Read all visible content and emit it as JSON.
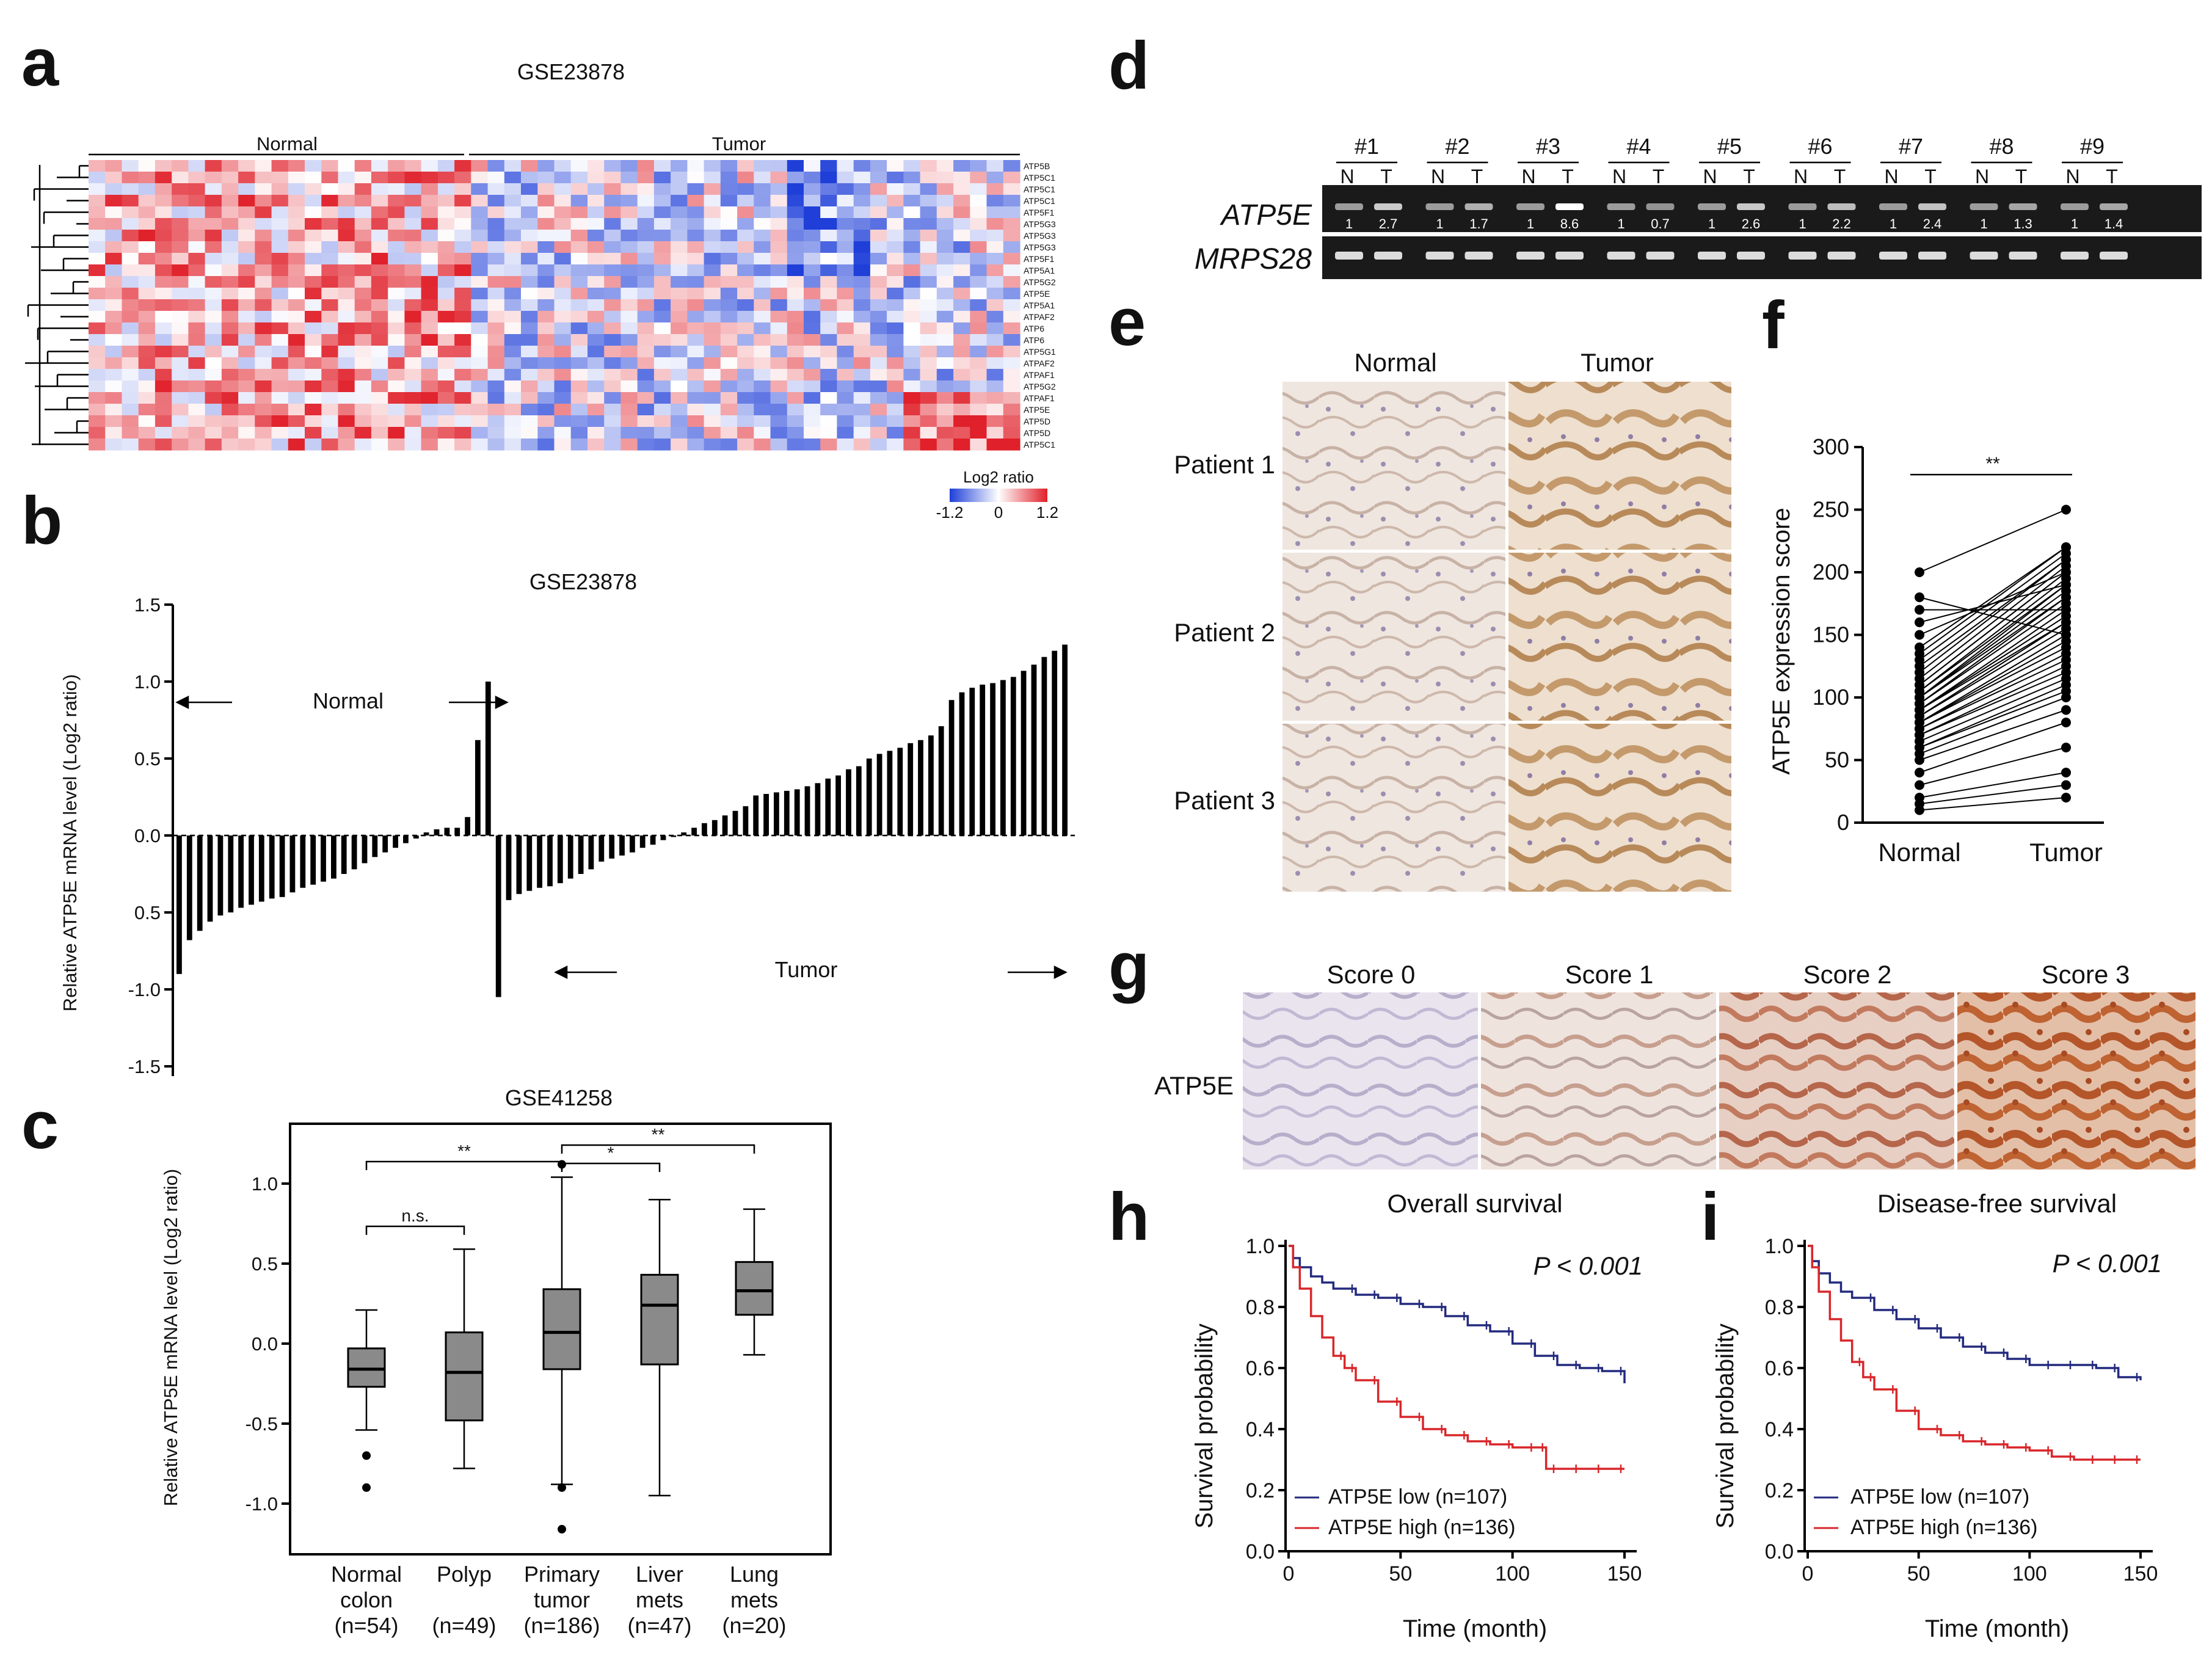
{
  "panel_letters": [
    "a",
    "b",
    "c",
    "d",
    "e",
    "f",
    "g",
    "h",
    "i"
  ],
  "panel_a": {
    "dataset": "GSE23878",
    "group_labels": [
      "Normal",
      "Tumor"
    ],
    "genes": [
      "ATP5B",
      "ATP5C1",
      "ATP5C1",
      "ATP5C1",
      "ATP5F1",
      "ATP5G3",
      "ATP5G3",
      "ATP5G3",
      "ATP5F1",
      "ATP5A1",
      "ATP5G2",
      "ATP5E",
      "ATP5A1",
      "ATPAF2",
      "ATP6",
      "ATP6",
      "ATP5G1",
      "ATPAF2",
      "ATPAF1",
      "ATP5G2",
      "ATPAF1",
      "ATP5E",
      "ATP5D",
      "ATP5D",
      "ATP5C1"
    ],
    "legend_title": "Log2 ratio",
    "legend_ticks": [
      "-1.2",
      "0",
      "1.2"
    ],
    "colors": {
      "low": "#1f3fd8",
      "mid": "#ffffff",
      "high": "#e0202a"
    }
  },
  "chart_data": [
    {
      "panel": "b",
      "type": "bar",
      "title": "GSE23878",
      "ylabel": "Relative ATP5E mRNA level (Log2 ratio)",
      "ylim": [
        -1.5,
        1.5
      ],
      "yticks": [
        "1.5",
        "1.0",
        "0.5",
        "0.0",
        "0.5",
        "-1.0",
        "-1.5"
      ],
      "annotations": [
        "Normal",
        "Tumor"
      ],
      "normal_values": [
        -0.9,
        -0.68,
        -0.62,
        -0.56,
        -0.52,
        -0.5,
        -0.47,
        -0.45,
        -0.43,
        -0.41,
        -0.4,
        -0.37,
        -0.34,
        -0.32,
        -0.3,
        -0.28,
        -0.25,
        -0.22,
        -0.18,
        -0.14,
        -0.11,
        -0.08,
        -0.05,
        -0.02,
        0.02,
        0.04,
        0.05,
        0.05,
        0.12,
        0.62,
        1.0
      ],
      "tumor_values": [
        -1.05,
        -0.42,
        -0.38,
        -0.36,
        -0.34,
        -0.33,
        -0.31,
        -0.28,
        -0.25,
        -0.22,
        -0.17,
        -0.15,
        -0.13,
        -0.11,
        -0.08,
        -0.06,
        -0.03,
        -0.01,
        0.02,
        0.05,
        0.08,
        0.1,
        0.13,
        0.16,
        0.19,
        0.26,
        0.27,
        0.28,
        0.29,
        0.3,
        0.32,
        0.34,
        0.37,
        0.39,
        0.43,
        0.45,
        0.5,
        0.53,
        0.55,
        0.57,
        0.6,
        0.62,
        0.65,
        0.71,
        0.88,
        0.93,
        0.96,
        0.98,
        0.99,
        1.01,
        1.03,
        1.07,
        1.11,
        1.16,
        1.2,
        1.24
      ]
    },
    {
      "panel": "c",
      "type": "box",
      "title": "GSE41258",
      "ylabel": "Relative ATP5E mRNA level (Log2 ratio)",
      "ylim": [
        -1.3,
        1.35
      ],
      "yticks": [
        "1.0",
        "0.5",
        "0.0",
        "-0.5",
        "-1.0"
      ],
      "categories": [
        {
          "name": [
            "Normal",
            "colon",
            "(n=54)"
          ],
          "q1": -0.27,
          "median": -0.16,
          "q3": -0.03,
          "wlo": -0.54,
          "whi": 0.21,
          "outliers": [
            -0.7,
            -0.9
          ]
        },
        {
          "name": [
            "Polyp",
            "",
            "(n=49)"
          ],
          "q1": -0.48,
          "median": -0.18,
          "q3": 0.07,
          "wlo": -0.78,
          "whi": 0.59,
          "outliers": []
        },
        {
          "name": [
            "Primary",
            "tumor",
            "(n=186)"
          ],
          "q1": -0.16,
          "median": 0.07,
          "q3": 0.34,
          "wlo": -0.88,
          "whi": 1.04,
          "outliers": [
            1.12,
            -0.9,
            -1.16
          ]
        },
        {
          "name": [
            "Liver",
            "mets",
            "(n=47)"
          ],
          "q1": -0.13,
          "median": 0.24,
          "q3": 0.43,
          "wlo": -0.95,
          "whi": 0.9,
          "outliers": []
        },
        {
          "name": [
            "Lung",
            "mets",
            "(n=20)"
          ],
          "q1": 0.18,
          "median": 0.33,
          "q3": 0.51,
          "wlo": -0.07,
          "whi": 0.84,
          "outliers": []
        }
      ],
      "significance": [
        {
          "from": 0,
          "to": 1,
          "label": "n.s."
        },
        {
          "from": 0,
          "to": 2,
          "label": "**"
        },
        {
          "from": 2,
          "to": 3,
          "label": "*"
        },
        {
          "from": 2,
          "to": 4,
          "label": "**"
        }
      ]
    },
    {
      "panel": "f",
      "type": "paired-dot",
      "ylabel": "ATP5E expression score",
      "ylim": [
        0,
        300
      ],
      "yticks": [
        "0",
        "50",
        "100",
        "150",
        "200",
        "250",
        "300"
      ],
      "categories": [
        "Normal",
        "Tumor"
      ],
      "significance": "**",
      "normal": [
        10,
        15,
        20,
        30,
        40,
        50,
        55,
        60,
        60,
        65,
        70,
        70,
        75,
        75,
        80,
        80,
        80,
        85,
        85,
        90,
        90,
        90,
        95,
        95,
        100,
        100,
        100,
        105,
        105,
        110,
        110,
        115,
        120,
        125,
        130,
        135,
        140,
        150,
        160,
        170,
        180,
        200
      ],
      "tumor": [
        20,
        30,
        40,
        60,
        80,
        90,
        100,
        105,
        110,
        115,
        120,
        125,
        130,
        135,
        140,
        145,
        150,
        155,
        160,
        160,
        165,
        170,
        175,
        180,
        180,
        185,
        190,
        190,
        195,
        200,
        200,
        205,
        210,
        210,
        215,
        220,
        220,
        200,
        190,
        170,
        150,
        250
      ]
    },
    {
      "panel": "h",
      "type": "line",
      "title": "Overall survival",
      "xlabel": "Time (month)",
      "ylabel": "Survival probability",
      "xlim": [
        0,
        150
      ],
      "ylim": [
        0,
        1.0
      ],
      "xticks": [
        "0",
        "50",
        "100",
        "150"
      ],
      "yticks": [
        "0.0",
        "0.2",
        "0.4",
        "0.6",
        "0.8",
        "1.0"
      ],
      "pvalue": "P < 0.001",
      "series": [
        {
          "name": "ATP5E low (n=107)",
          "color": "#232a7e",
          "x": [
            0,
            2,
            5,
            10,
            15,
            20,
            30,
            40,
            50,
            60,
            70,
            80,
            90,
            100,
            110,
            120,
            130,
            140,
            150
          ],
          "y": [
            1.0,
            0.96,
            0.93,
            0.9,
            0.88,
            0.86,
            0.84,
            0.83,
            0.81,
            0.8,
            0.77,
            0.74,
            0.72,
            0.68,
            0.64,
            0.61,
            0.6,
            0.59,
            0.55
          ]
        },
        {
          "name": "ATP5E high (n=136)",
          "color": "#d8262a",
          "x": [
            0,
            2,
            5,
            10,
            15,
            20,
            25,
            30,
            40,
            50,
            60,
            70,
            80,
            90,
            100,
            110,
            115,
            120,
            130,
            140,
            150
          ],
          "y": [
            1.0,
            0.93,
            0.86,
            0.77,
            0.7,
            0.64,
            0.6,
            0.56,
            0.49,
            0.44,
            0.4,
            0.38,
            0.36,
            0.35,
            0.34,
            0.34,
            0.27,
            0.27,
            0.27,
            0.27,
            0.27
          ]
        }
      ]
    },
    {
      "panel": "i",
      "type": "line",
      "title": "Disease-free survival",
      "xlabel": "Time (month)",
      "ylabel": "Survival probability",
      "xlim": [
        0,
        150
      ],
      "ylim": [
        0,
        1.0
      ],
      "xticks": [
        "0",
        "50",
        "100",
        "150"
      ],
      "yticks": [
        "0.0",
        "0.2",
        "0.4",
        "0.6",
        "0.8",
        "1.0"
      ],
      "pvalue": "P < 0.001",
      "series": [
        {
          "name": "ATP5E low (n=107)",
          "color": "#232a7e",
          "x": [
            0,
            2,
            5,
            10,
            15,
            20,
            30,
            40,
            50,
            60,
            70,
            80,
            90,
            100,
            110,
            120,
            130,
            140,
            150
          ],
          "y": [
            1.0,
            0.95,
            0.91,
            0.88,
            0.85,
            0.83,
            0.79,
            0.76,
            0.73,
            0.7,
            0.67,
            0.65,
            0.63,
            0.61,
            0.61,
            0.61,
            0.6,
            0.57,
            0.56
          ]
        },
        {
          "name": "ATP5E high (n=136)",
          "color": "#d8262a",
          "x": [
            0,
            2,
            5,
            10,
            15,
            20,
            25,
            30,
            40,
            50,
            60,
            70,
            80,
            90,
            100,
            110,
            120,
            130,
            140,
            150
          ],
          "y": [
            1.0,
            0.93,
            0.85,
            0.76,
            0.69,
            0.62,
            0.57,
            0.53,
            0.46,
            0.4,
            0.38,
            0.36,
            0.35,
            0.34,
            0.33,
            0.31,
            0.3,
            0.3,
            0.3,
            0.3
          ]
        }
      ]
    }
  ],
  "panel_d": {
    "patients": [
      "#1",
      "#2",
      "#3",
      "#4",
      "#5",
      "#6",
      "#7",
      "#8",
      "#9"
    ],
    "lane_labels": [
      "N",
      "T"
    ],
    "genes": [
      "ATP5E",
      "MRPS28"
    ],
    "ratios": [
      [
        "1",
        "2.7"
      ],
      [
        "1",
        "1.7"
      ],
      [
        "1",
        "8.6"
      ],
      [
        "1",
        "0.7"
      ],
      [
        "1",
        "2.6"
      ],
      [
        "1",
        "2.2"
      ],
      [
        "1",
        "2.4"
      ],
      [
        "1",
        "1.3"
      ],
      [
        "1",
        "1.4"
      ]
    ]
  },
  "panel_e": {
    "column_labels": [
      "Normal",
      "Tumor"
    ],
    "row_labels": [
      "Patient 1",
      "Patient 2",
      "Patient 3"
    ]
  },
  "panel_g": {
    "score_labels": [
      "Score 0",
      "Score 1",
      "Score 2",
      "Score 3"
    ],
    "row_label": "ATP5E"
  }
}
